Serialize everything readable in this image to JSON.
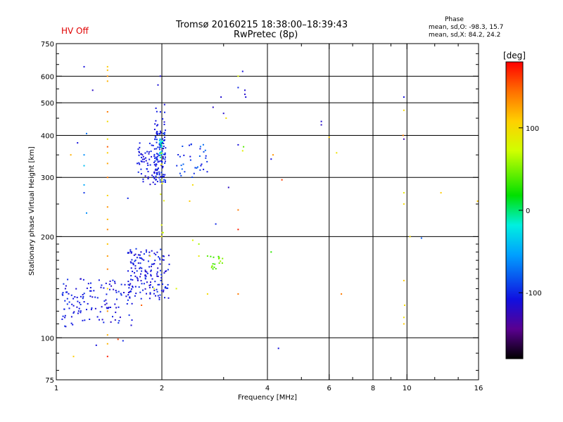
{
  "header": {
    "title_line1": "Tromsø 20160215 18:38:00–18:39:43",
    "title_line2": "RwPretec (8p)",
    "hv_status": "HV Off",
    "phase_title": "Phase",
    "phase_o": "mean, sd,O: -98.3, 15.7",
    "phase_x": "mean, sd,X:  84.2, 24.2"
  },
  "colors": {
    "hv_status": "#e00000",
    "grid": "#000000"
  },
  "chart_data": {
    "type": "scatter",
    "xlabel": "Frequency [MHz]",
    "ylabel": "Stationary phase Virtual Height [km]",
    "xscale": "log",
    "yscale": "log",
    "xlim": [
      1,
      16
    ],
    "ylim": [
      75,
      750
    ],
    "xticks": [
      1,
      2,
      4,
      6,
      8,
      10,
      16
    ],
    "xtick_labels": [
      "1",
      "2",
      "4",
      "6",
      "8",
      "10",
      "16"
    ],
    "xgrid": [
      2,
      4,
      6,
      8,
      10
    ],
    "xminor": [
      3,
      5,
      7,
      9,
      12,
      14
    ],
    "yticks": [
      75,
      100,
      200,
      300,
      400,
      500,
      600,
      750
    ],
    "ytick_labels": [
      "75",
      "100",
      "200",
      "300",
      "400",
      "500",
      "600",
      "750"
    ],
    "ygrid": [
      100,
      200,
      300,
      400,
      500,
      600
    ],
    "yminor": [
      80,
      90,
      110,
      120,
      130,
      140,
      150,
      160,
      170,
      180,
      190,
      250,
      350,
      450,
      550,
      650,
      700
    ],
    "grid": true,
    "colorbar": {
      "label": "[deg]",
      "range": [
        -180,
        180
      ],
      "ticks": [
        100,
        0,
        -100
      ],
      "tick_labels": [
        "100",
        "0",
        "-100"
      ]
    },
    "clusters": [
      {
        "f": [
          1.03,
          1.65
        ],
        "h": [
          108,
          150
        ],
        "n": 130,
        "phase": [
          -120,
          -95
        ],
        "seed": 11
      },
      {
        "f": [
          1.6,
          2.1
        ],
        "h": [
          130,
          185
        ],
        "n": 160,
        "phase": [
          -120,
          -95
        ],
        "seed": 12
      },
      {
        "f": [
          1.9,
          2.05
        ],
        "h": [
          290,
          410
        ],
        "n": 90,
        "phase": [
          -115,
          -90
        ],
        "seed": 13
      },
      {
        "f": [
          1.7,
          2.05
        ],
        "h": [
          285,
          380
        ],
        "n": 70,
        "phase": [
          -120,
          -95
        ],
        "seed": 14
      },
      {
        "f": [
          2.2,
          2.7
        ],
        "h": [
          300,
          380
        ],
        "n": 35,
        "phase": [
          -110,
          -70
        ],
        "seed": 15
      },
      {
        "f": [
          1.9,
          2.05
        ],
        "h": [
          400,
          500
        ],
        "n": 18,
        "phase": [
          -115,
          -100
        ],
        "seed": 16
      },
      {
        "f": [
          1.97,
          2.02
        ],
        "h": [
          340,
          400
        ],
        "n": 20,
        "phase": [
          -40,
          -5
        ],
        "seed": 17
      },
      {
        "f": [
          2.75,
          3.0
        ],
        "h": [
          160,
          175
        ],
        "n": 18,
        "phase": [
          30,
          60
        ],
        "seed": 18
      },
      {
        "f": [
          1.98,
          2.05
        ],
        "h": [
          200,
          360
        ],
        "n": 10,
        "phase": [
          60,
          95
        ],
        "seed": 19
      }
    ],
    "points": [
      {
        "f": 1.4,
        "h": 640,
        "p": 110
      },
      {
        "f": 1.4,
        "h": 625,
        "p": 115
      },
      {
        "f": 1.4,
        "h": 600,
        "p": 130
      },
      {
        "f": 1.4,
        "h": 580,
        "p": 120
      },
      {
        "f": 1.4,
        "h": 470,
        "p": 140
      },
      {
        "f": 1.4,
        "h": 440,
        "p": 100
      },
      {
        "f": 1.4,
        "h": 390,
        "p": 95
      },
      {
        "f": 1.4,
        "h": 370,
        "p": 150
      },
      {
        "f": 1.4,
        "h": 355,
        "p": 110
      },
      {
        "f": 1.4,
        "h": 330,
        "p": 125
      },
      {
        "f": 1.4,
        "h": 300,
        "p": 140
      },
      {
        "f": 1.4,
        "h": 265,
        "p": 105
      },
      {
        "f": 1.4,
        "h": 245,
        "p": 130
      },
      {
        "f": 1.4,
        "h": 225,
        "p": 118
      },
      {
        "f": 1.4,
        "h": 210,
        "p": 135
      },
      {
        "f": 1.4,
        "h": 190,
        "p": 112
      },
      {
        "f": 1.4,
        "h": 175,
        "p": 128
      },
      {
        "f": 1.4,
        "h": 160,
        "p": 140
      },
      {
        "f": 1.4,
        "h": 140,
        "p": 108
      },
      {
        "f": 1.4,
        "h": 120,
        "p": 132
      },
      {
        "f": 1.4,
        "h": 102,
        "p": 120
      },
      {
        "f": 1.4,
        "h": 88,
        "p": 170
      },
      {
        "f": 1.4,
        "h": 96,
        "p": 118
      },
      {
        "f": 1.2,
        "h": 640,
        "p": -110
      },
      {
        "f": 1.27,
        "h": 545,
        "p": -120
      },
      {
        "f": 1.22,
        "h": 405,
        "p": -70
      },
      {
        "f": 1.2,
        "h": 350,
        "p": -60
      },
      {
        "f": 1.2,
        "h": 325,
        "p": -40
      },
      {
        "f": 1.2,
        "h": 285,
        "p": -50
      },
      {
        "f": 1.2,
        "h": 270,
        "p": -95
      },
      {
        "f": 1.22,
        "h": 235,
        "p": -60
      },
      {
        "f": 1.1,
        "h": 350,
        "p": 120
      },
      {
        "f": 1.15,
        "h": 380,
        "p": -110
      },
      {
        "f": 1.6,
        "h": 260,
        "p": -100
      },
      {
        "f": 1.12,
        "h": 88,
        "p": 110
      },
      {
        "f": 1.3,
        "h": 95,
        "p": -110
      },
      {
        "f": 1.55,
        "h": 98,
        "p": -100
      },
      {
        "f": 1.5,
        "h": 99,
        "p": 160
      },
      {
        "f": 1.98,
        "h": 600,
        "p": -115
      },
      {
        "f": 1.95,
        "h": 565,
        "p": -112
      },
      {
        "f": 2.8,
        "h": 485,
        "p": -120
      },
      {
        "f": 2.95,
        "h": 520,
        "p": -115
      },
      {
        "f": 3.0,
        "h": 465,
        "p": -118
      },
      {
        "f": 3.05,
        "h": 450,
        "p": 100
      },
      {
        "f": 3.3,
        "h": 600,
        "p": 80
      },
      {
        "f": 3.3,
        "h": 555,
        "p": -100
      },
      {
        "f": 3.45,
        "h": 545,
        "p": -115
      },
      {
        "f": 3.45,
        "h": 530,
        "p": -118
      },
      {
        "f": 3.47,
        "h": 520,
        "p": -112
      },
      {
        "f": 3.4,
        "h": 620,
        "p": -110
      },
      {
        "f": 3.3,
        "h": 375,
        "p": -110
      },
      {
        "f": 3.42,
        "h": 370,
        "p": 40
      },
      {
        "f": 3.4,
        "h": 360,
        "p": 85
      },
      {
        "f": 3.1,
        "h": 280,
        "p": -120
      },
      {
        "f": 2.85,
        "h": 218,
        "p": -100
      },
      {
        "f": 3.3,
        "h": 240,
        "p": 140
      },
      {
        "f": 3.3,
        "h": 210,
        "p": 170
      },
      {
        "f": 2.45,
        "h": 195,
        "p": 80
      },
      {
        "f": 2.55,
        "h": 190,
        "p": 60
      },
      {
        "f": 2.7,
        "h": 175,
        "p": 40
      },
      {
        "f": 2.55,
        "h": 175,
        "p": 90
      },
      {
        "f": 2.7,
        "h": 135,
        "p": 100
      },
      {
        "f": 2.2,
        "h": 140,
        "p": 80
      },
      {
        "f": 2.45,
        "h": 285,
        "p": 100
      },
      {
        "f": 2.4,
        "h": 255,
        "p": 110
      },
      {
        "f": 1.85,
        "h": 175,
        "p": 100
      },
      {
        "f": 1.9,
        "h": 140,
        "p": 80
      },
      {
        "f": 1.75,
        "h": 125,
        "p": 150
      },
      {
        "f": 3.3,
        "h": 135,
        "p": 140
      },
      {
        "f": 4.1,
        "h": 340,
        "p": -110
      },
      {
        "f": 4.15,
        "h": 350,
        "p": 130
      },
      {
        "f": 4.1,
        "h": 180,
        "p": 30
      },
      {
        "f": 4.4,
        "h": 295,
        "p": 160
      },
      {
        "f": 4.3,
        "h": 93,
        "p": -110
      },
      {
        "f": 5.7,
        "h": 440,
        "p": -115
      },
      {
        "f": 5.7,
        "h": 430,
        "p": -120
      },
      {
        "f": 6.0,
        "h": 395,
        "p": 110
      },
      {
        "f": 6.3,
        "h": 355,
        "p": 95
      },
      {
        "f": 6.5,
        "h": 135,
        "p": 140
      },
      {
        "f": 9.8,
        "h": 520,
        "p": -110
      },
      {
        "f": 9.8,
        "h": 475,
        "p": 100
      },
      {
        "f": 9.75,
        "h": 400,
        "p": 140
      },
      {
        "f": 9.8,
        "h": 390,
        "p": -130
      },
      {
        "f": 9.8,
        "h": 270,
        "p": 90
      },
      {
        "f": 9.8,
        "h": 250,
        "p": 100
      },
      {
        "f": 9.8,
        "h": 148,
        "p": 110
      },
      {
        "f": 9.85,
        "h": 125,
        "p": 100
      },
      {
        "f": 9.8,
        "h": 115,
        "p": 95
      },
      {
        "f": 9.8,
        "h": 110,
        "p": 110
      },
      {
        "f": 10.2,
        "h": 200,
        "p": 100
      },
      {
        "f": 11.0,
        "h": 198,
        "p": -80
      },
      {
        "f": 12.5,
        "h": 270,
        "p": 110
      },
      {
        "f": 15.9,
        "h": 255,
        "p": 110
      }
    ]
  }
}
